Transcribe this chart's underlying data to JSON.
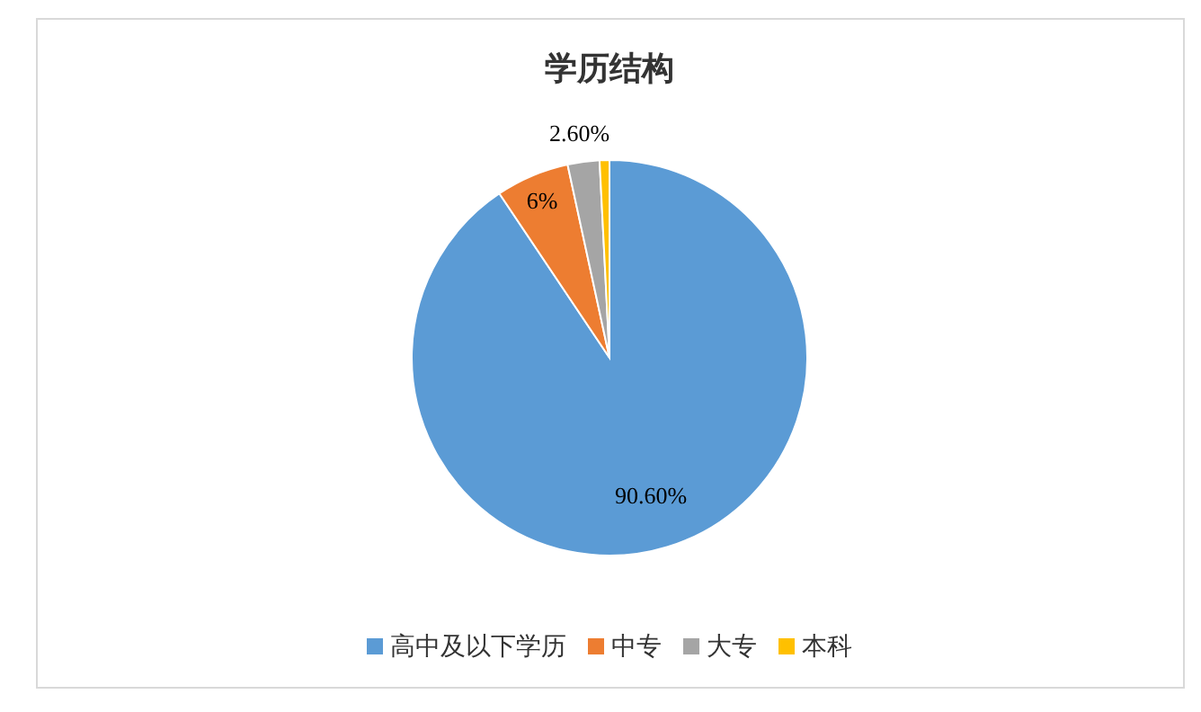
{
  "chart_data": {
    "type": "pie",
    "title": "学历结构",
    "categories": [
      "高中及以下学历",
      "中专",
      "大专",
      "本科"
    ],
    "values": [
      90.6,
      6,
      2.6,
      0.8
    ],
    "colors": [
      "#5b9bd5",
      "#ed7d31",
      "#a5a5a5",
      "#ffc000"
    ],
    "value_labels": [
      "90.60%",
      "6%",
      "2.60%",
      null
    ],
    "legend": "bottom"
  }
}
